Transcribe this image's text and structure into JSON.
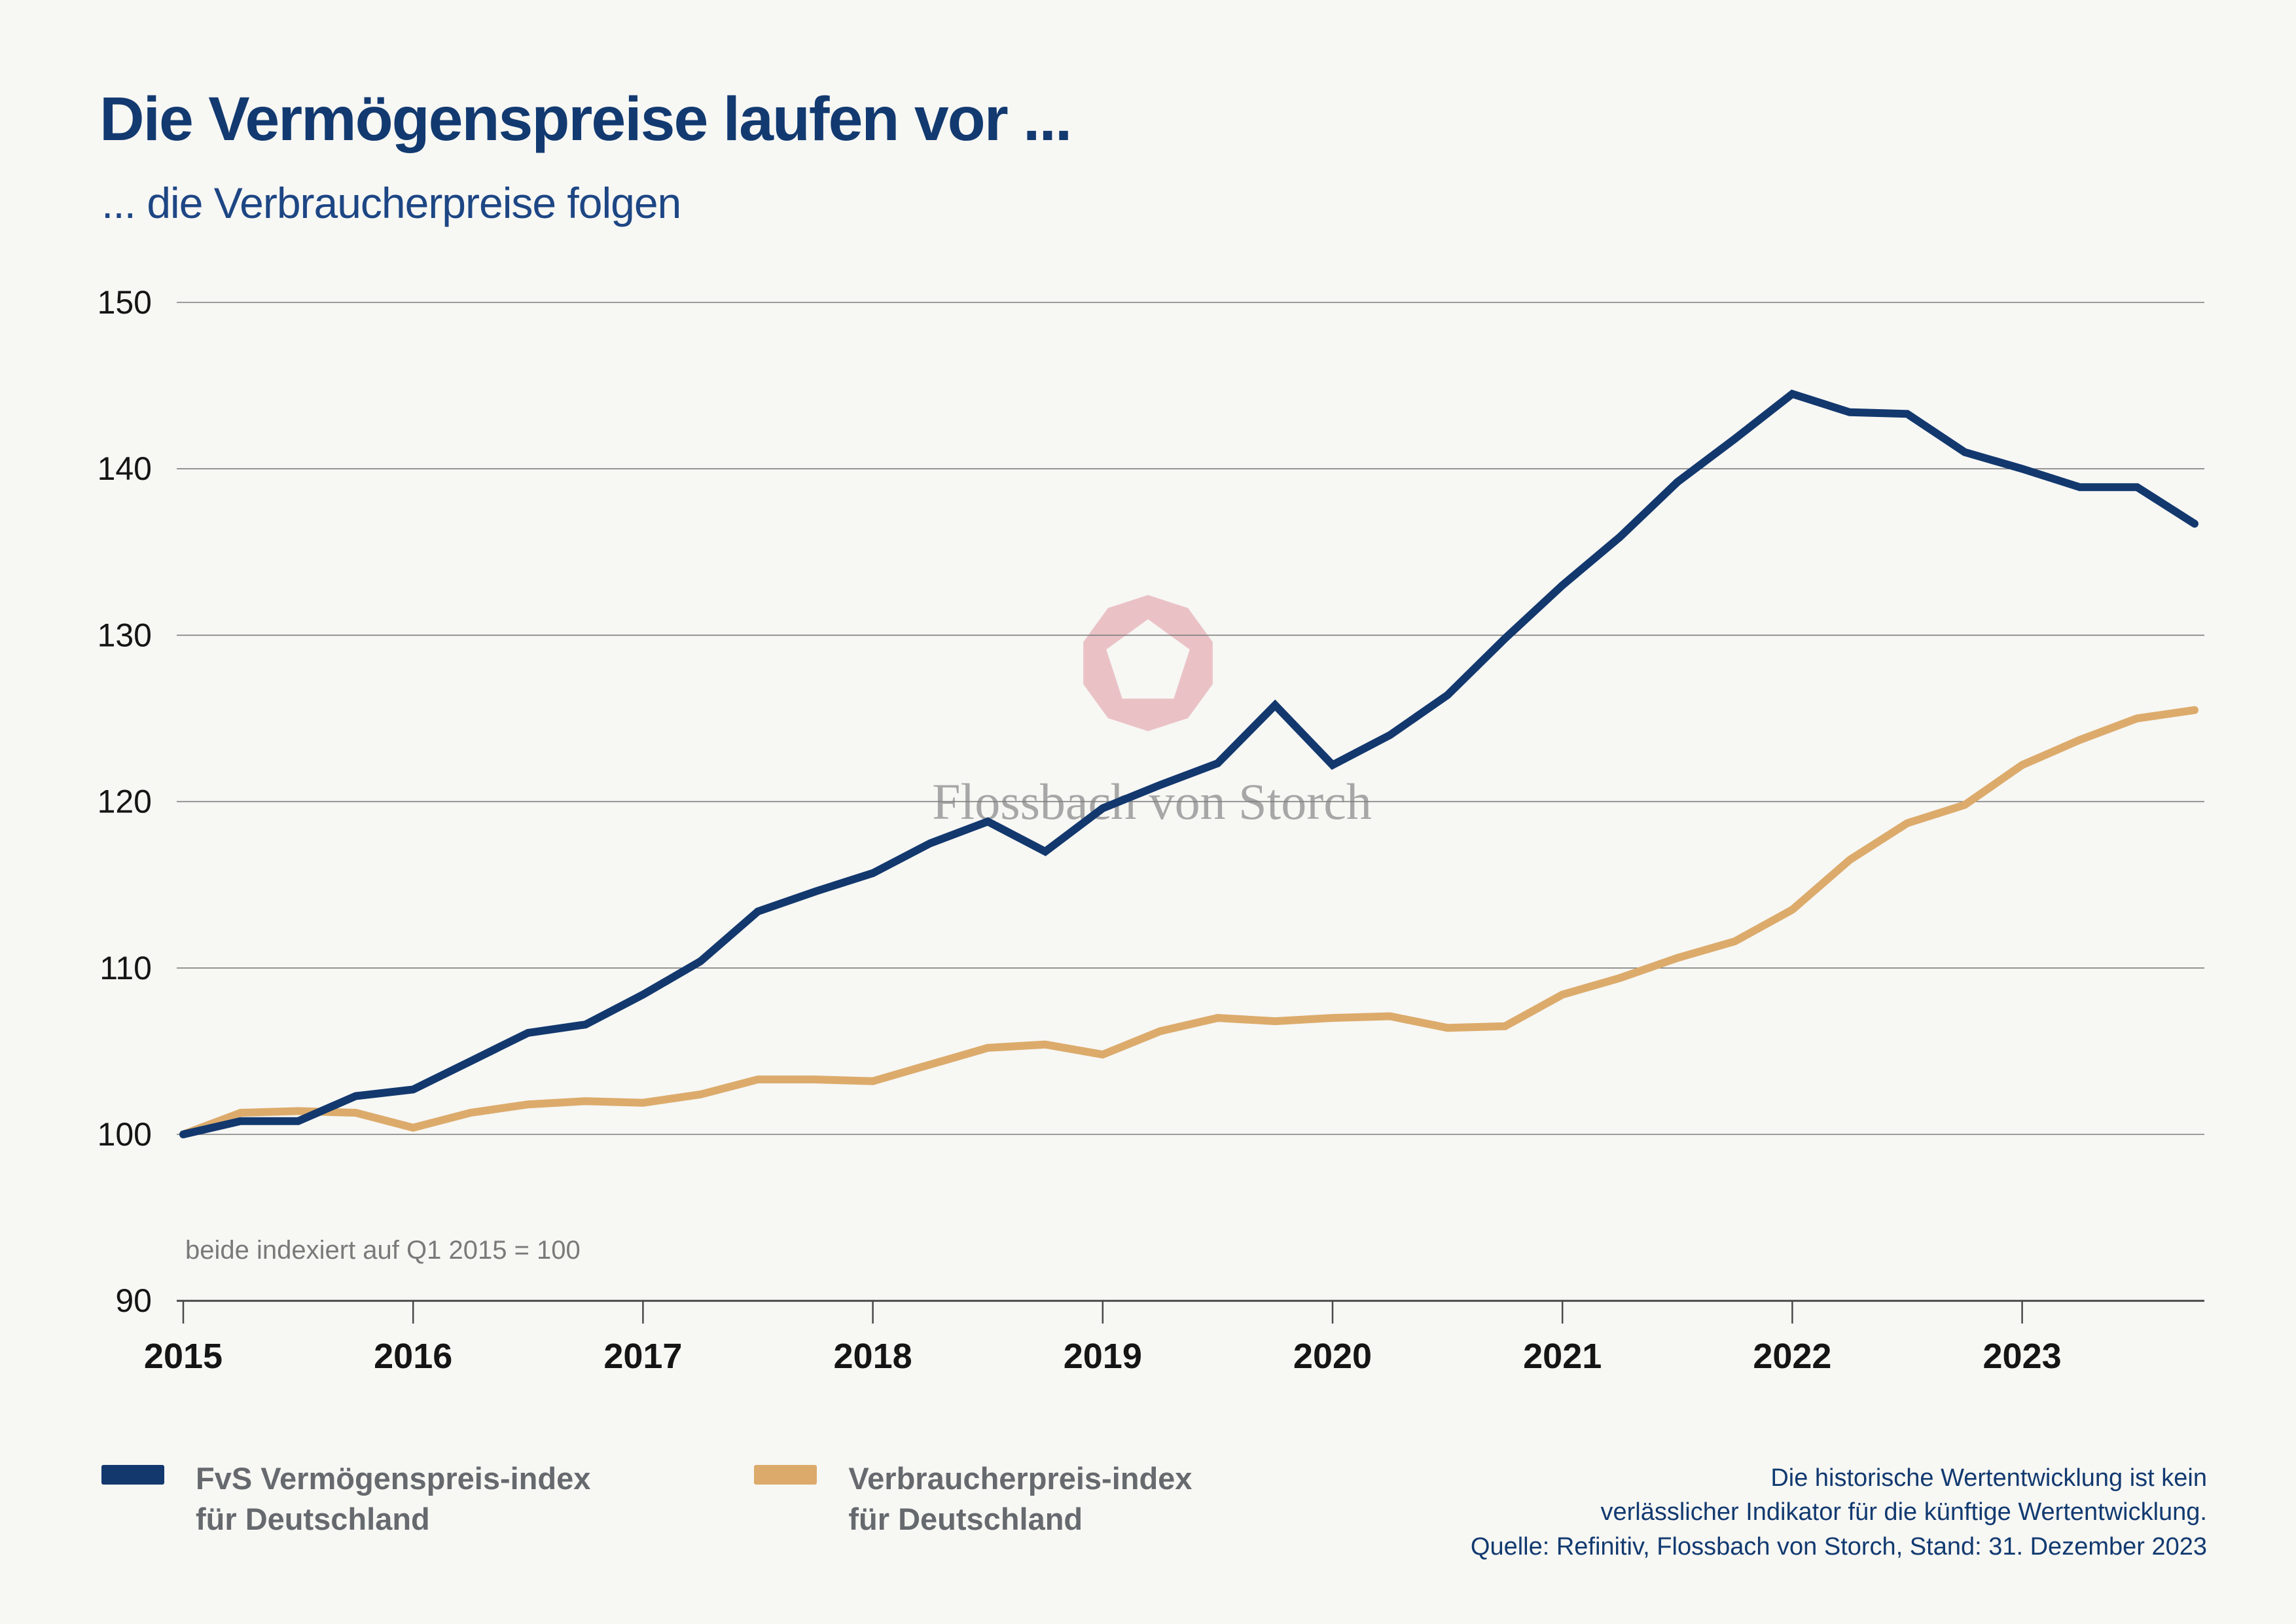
{
  "header": {
    "title": "Die Vermögenspreise laufen vor ...",
    "subtitle": "... die Verbraucherpreise folgen"
  },
  "chart_data": {
    "type": "line",
    "note": "beide indexiert auf Q1 2015 = 100",
    "x_tick_labels": [
      "2015",
      "2016",
      "2017",
      "2018",
      "2019",
      "2020",
      "2021",
      "2022",
      "2023"
    ],
    "y_ticks": [
      90,
      100,
      110,
      120,
      130,
      140,
      150
    ],
    "ylim": [
      90,
      150
    ],
    "grid": true,
    "legend_position": "bottom-left",
    "x": [
      "Q1 2015",
      "Q2 2015",
      "Q3 2015",
      "Q4 2015",
      "Q1 2016",
      "Q2 2016",
      "Q3 2016",
      "Q4 2016",
      "Q1 2017",
      "Q2 2017",
      "Q3 2017",
      "Q4 2017",
      "Q1 2018",
      "Q2 2018",
      "Q3 2018",
      "Q4 2018",
      "Q1 2019",
      "Q2 2019",
      "Q3 2019",
      "Q4 2019",
      "Q1 2020",
      "Q2 2020",
      "Q3 2020",
      "Q4 2020",
      "Q1 2021",
      "Q2 2021",
      "Q3 2021",
      "Q4 2021",
      "Q1 2022",
      "Q2 2022",
      "Q3 2022",
      "Q4 2022",
      "Q1 2023",
      "Q2 2023",
      "Q3 2023",
      "Q4 2023"
    ],
    "series": [
      {
        "name": "FvS Vermögenspreis-index für Deutschland",
        "color": "#12386e",
        "values": [
          100.0,
          100.8,
          100.8,
          102.3,
          102.7,
          104.4,
          106.1,
          106.6,
          108.4,
          110.4,
          113.4,
          114.6,
          115.7,
          117.5,
          118.8,
          117.0,
          119.6,
          121.0,
          122.3,
          125.8,
          122.2,
          124.0,
          126.4,
          129.8,
          133.0,
          135.9,
          139.2,
          141.8,
          144.5,
          143.4,
          143.3,
          141.0,
          140.0,
          138.9,
          138.9,
          136.7
        ]
      },
      {
        "name": "Verbraucherpreis-index für Deutschland",
        "color": "#dcab6b",
        "values": [
          100.0,
          101.3,
          101.4,
          101.3,
          100.4,
          101.3,
          101.8,
          102.0,
          101.9,
          102.4,
          103.3,
          103.3,
          103.2,
          104.2,
          105.2,
          105.4,
          104.8,
          106.2,
          107.0,
          106.8,
          107.0,
          107.1,
          106.4,
          106.5,
          108.4,
          109.4,
          110.6,
          111.6,
          113.5,
          116.5,
          118.7,
          119.8,
          122.2,
          123.7,
          125.0,
          125.5
        ]
      }
    ]
  },
  "legend": {
    "items": [
      {
        "line1": "FvS Vermögenspreis-index",
        "line2": "für Deutschland",
        "color": "#12386e"
      },
      {
        "line1": "Verbraucherpreis-index",
        "line2": "für Deutschland",
        "color": "#dcab6b"
      }
    ]
  },
  "watermark": {
    "text": "Flossbach von Storch",
    "logo_color": "#e9bdc2"
  },
  "footer": {
    "line1": "Die historische Wertentwicklung ist kein",
    "line2": "verlässlicher Indikator für die künftige Wertentwicklung.",
    "line3": "Quelle: Refinitiv, Flossbach von Storch, Stand: 31. Dezember 2023"
  }
}
